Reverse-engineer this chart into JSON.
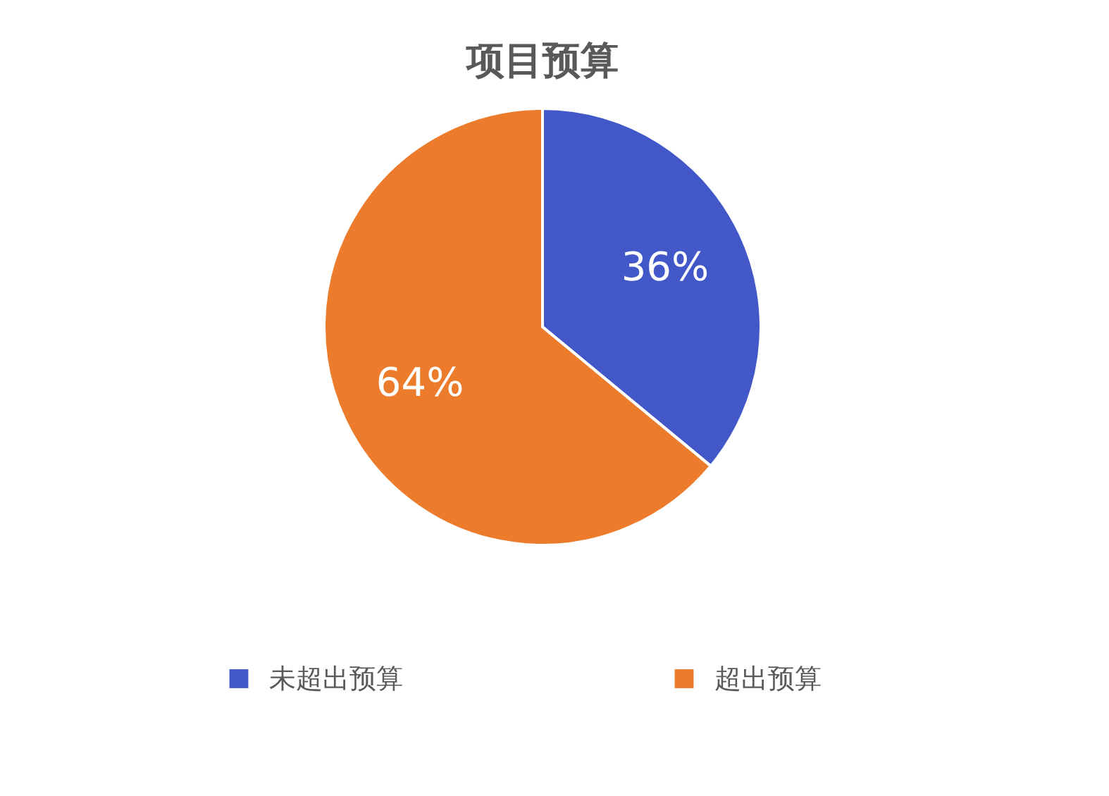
{
  "chart_data": {
    "type": "pie",
    "title": "项目预算",
    "categories": [
      "未超出预算",
      "超出预算"
    ],
    "values": [
      36,
      64
    ],
    "value_labels": [
      "36%",
      "64%"
    ],
    "colors": [
      "#4258c8",
      "#ec7c2c"
    ],
    "legend": "bottom"
  }
}
